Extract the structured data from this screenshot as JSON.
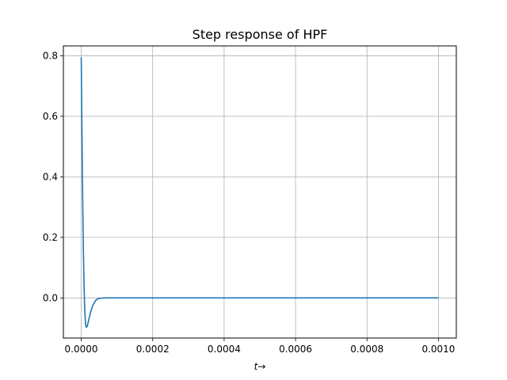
{
  "chart_data": {
    "type": "line",
    "title": "Step response of HPF",
    "xlabel": "t→",
    "ylabel": "",
    "xlim": [
      -5e-05,
      0.00105
    ],
    "ylim": [
      -0.1325,
      0.8325
    ],
    "x_ticks": [
      0.0,
      0.0002,
      0.0004,
      0.0006,
      0.0008,
      0.001
    ],
    "x_tick_labels": [
      "0.0000",
      "0.0002",
      "0.0004",
      "0.0006",
      "0.0008",
      "0.0010"
    ],
    "y_ticks": [
      0.0,
      0.2,
      0.4,
      0.6,
      0.8
    ],
    "y_tick_labels": [
      "0.0",
      "0.2",
      "0.4",
      "0.6",
      "0.8"
    ],
    "grid": true,
    "series": [
      {
        "color": "#1f77b4",
        "x": [
          0.0,
          2e-06,
          4e-06,
          6e-06,
          8e-06,
          1e-05,
          1.2e-05,
          1.4e-05,
          1.6e-05,
          1.8e-05,
          2e-05,
          2.4e-05,
          2.8e-05,
          3.2e-05,
          3.6e-05,
          4e-05,
          4.5e-05,
          5e-05,
          6e-05,
          7e-05,
          8e-05,
          9e-05,
          0.0001,
          0.00012,
          0.00015,
          0.0002,
          0.0003,
          0.0005,
          0.0007,
          0.001
        ],
        "y": [
          0.795,
          0.55,
          0.33,
          0.16,
          0.035,
          -0.045,
          -0.085,
          -0.097,
          -0.095,
          -0.088,
          -0.078,
          -0.058,
          -0.04,
          -0.026,
          -0.016,
          -0.009,
          -0.004,
          -0.0015,
          -0.0003,
          0.0001,
          0.0002,
          0.0001,
          0.0,
          0.0,
          0.0,
          0.0,
          0.0,
          0.0,
          0.0,
          0.0
        ]
      }
    ]
  }
}
